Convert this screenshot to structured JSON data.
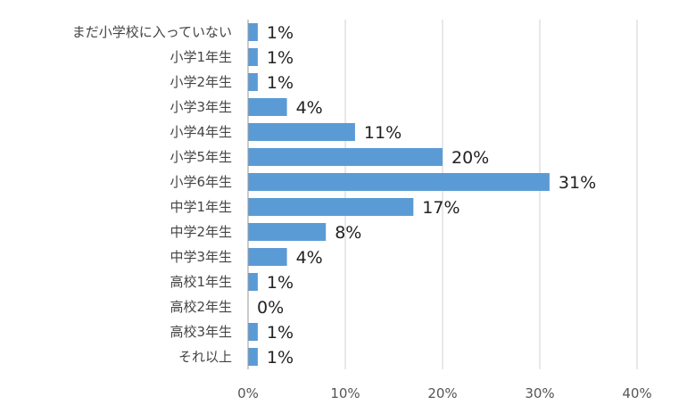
{
  "chart_data": {
    "type": "bar",
    "orientation": "horizontal",
    "title": "",
    "xlabel": "",
    "ylabel": "",
    "categories": [
      "まだ小学校に入っていない",
      "小学1年生",
      "小学2年生",
      "小学3年生",
      "小学4年生",
      "小学5年生",
      "小学6年生",
      "中学1年生",
      "中学2年生",
      "中学3年生",
      "高校1年生",
      "高校2年生",
      "高校3年生",
      "それ以上"
    ],
    "values": [
      1,
      1,
      1,
      4,
      11,
      20,
      31,
      17,
      8,
      4,
      1,
      0,
      1,
      1
    ],
    "data_labels": [
      "1%",
      "1%",
      "1%",
      "4%",
      "11%",
      "20%",
      "31%",
      "17%",
      "8%",
      "4%",
      "1%",
      "0%",
      "1%",
      "1%"
    ],
    "xlim": [
      0,
      40
    ],
    "x_ticks": [
      0,
      10,
      20,
      30,
      40
    ],
    "x_tick_labels": [
      "0%",
      "10%",
      "20%",
      "30%",
      "40%"
    ],
    "grid": true,
    "legend": "none",
    "bar_color": "#5b9bd5"
  }
}
